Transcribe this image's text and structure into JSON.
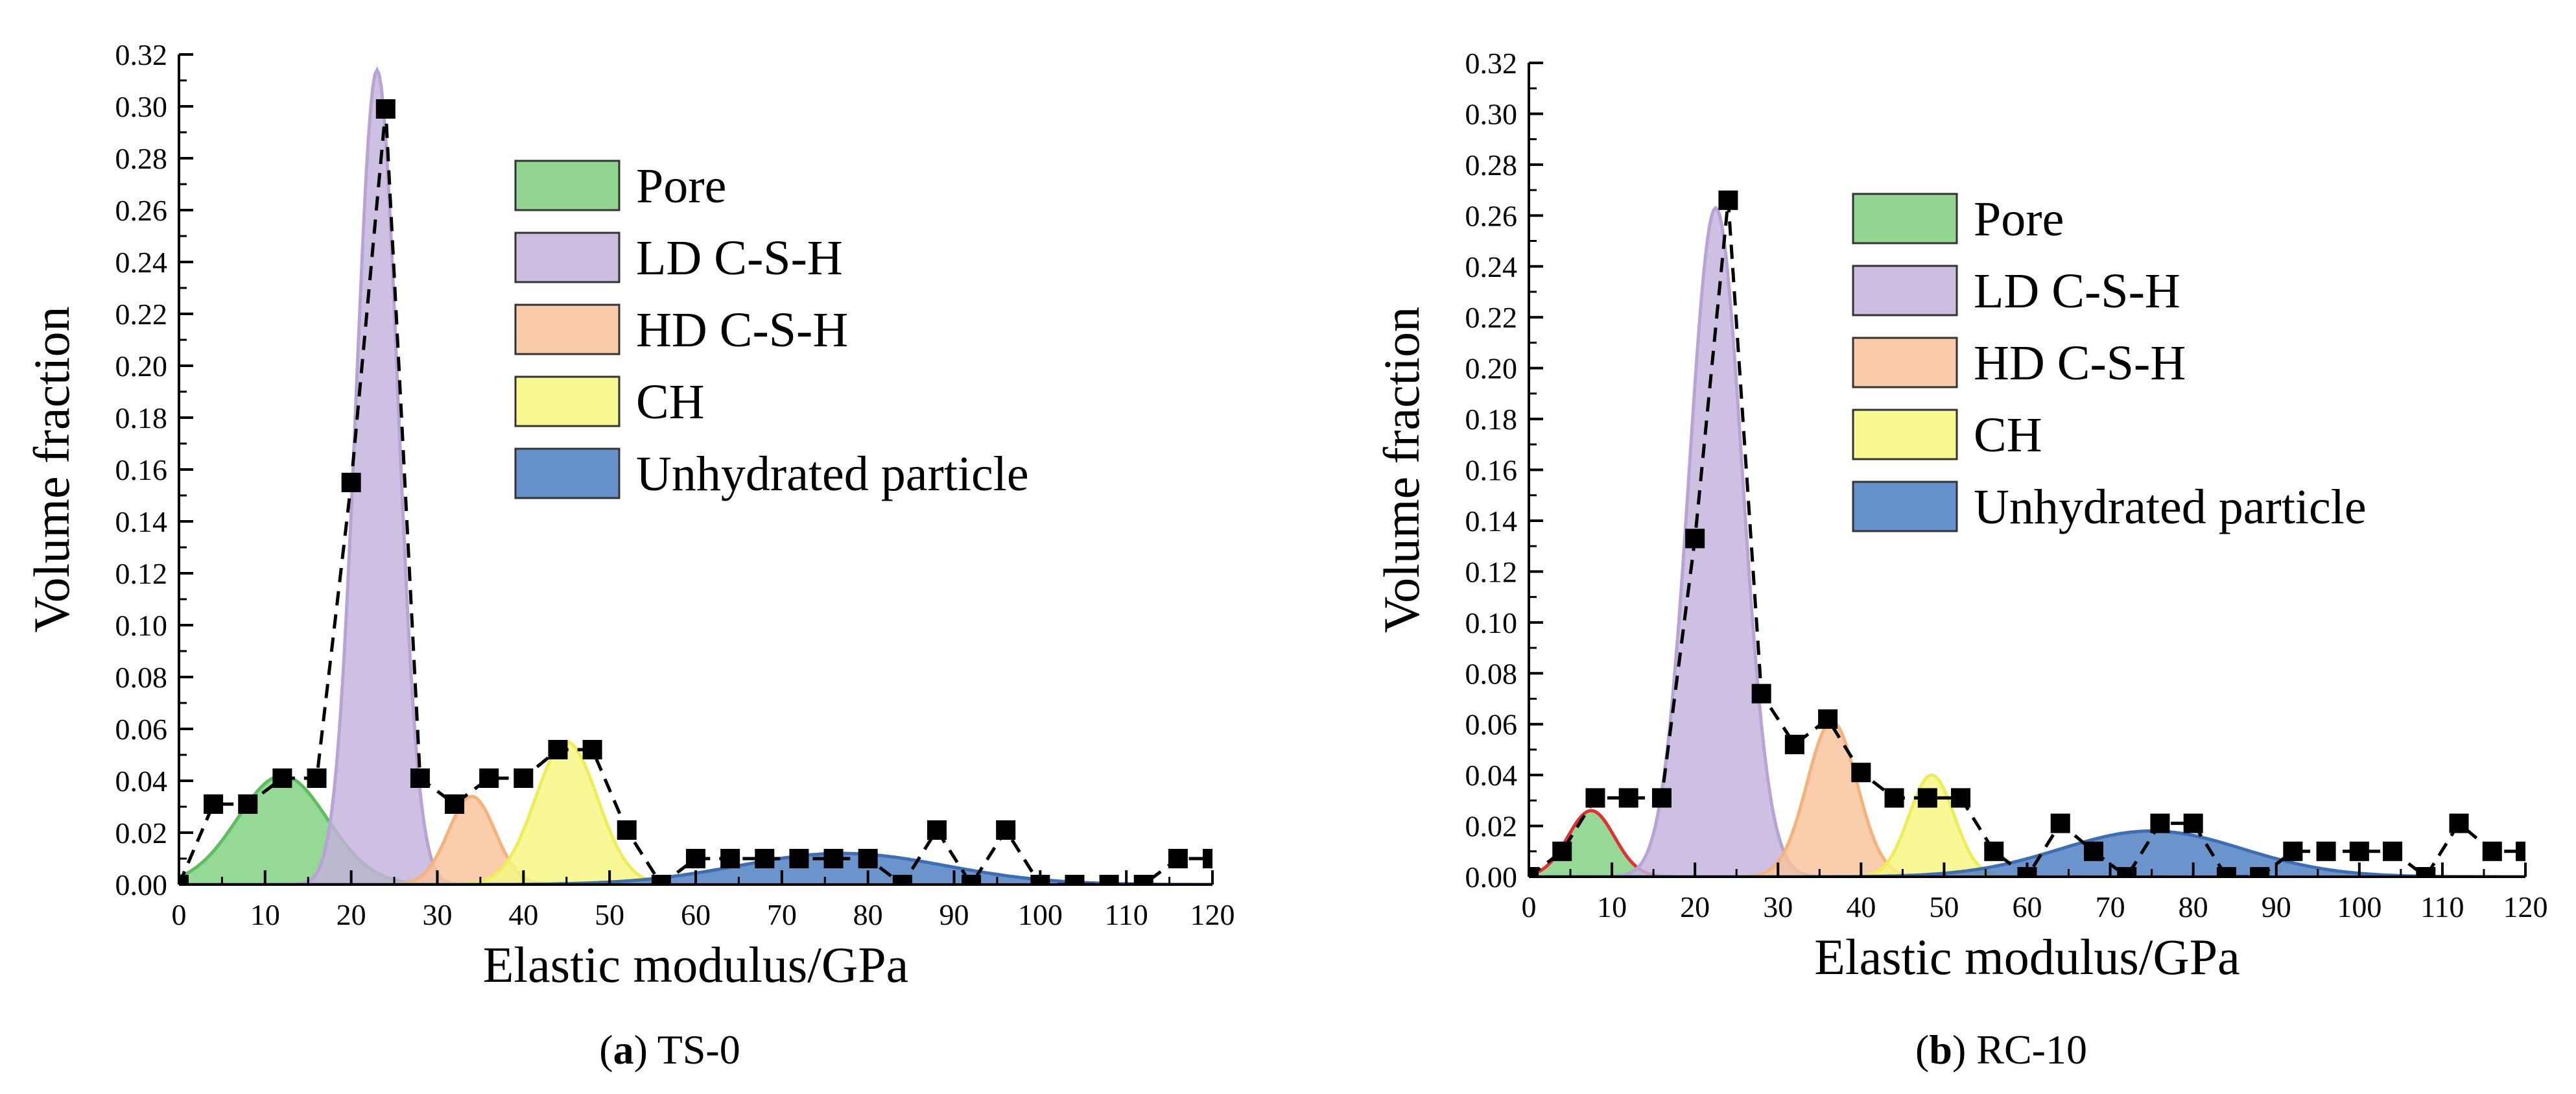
{
  "chart_data": [
    {
      "type": "area",
      "panel_label": "a",
      "caption": "TS-0",
      "xlabel": "Elastic modulus/GPa",
      "ylabel": "Volume fraction",
      "xlim": [
        0,
        120
      ],
      "ylim": [
        0,
        0.32
      ],
      "x_ticks": [
        0,
        10,
        20,
        30,
        40,
        50,
        60,
        70,
        80,
        90,
        100,
        110,
        120
      ],
      "y_ticks": [
        0.0,
        0.02,
        0.04,
        0.06,
        0.08,
        0.1,
        0.12,
        0.14,
        0.16,
        0.18,
        0.2,
        0.22,
        0.24,
        0.26,
        0.28,
        0.3,
        0.32
      ],
      "legend": [
        "Pore",
        "LD C-S-H",
        "HD C-S-H",
        "CH",
        "Unhydrated particle"
      ],
      "legend_position": "upper-center-right",
      "series": [
        {
          "name": "Pore",
          "color": "#5cbf5c",
          "fill": "#7fcf7f",
          "mean": 12,
          "std": 5.2,
          "peak": 0.042
        },
        {
          "name": "LD C-S-H",
          "color": "#b7a3d4",
          "fill": "#c3b2dc",
          "mean": 23,
          "std": 2.4,
          "peak": 0.314
        },
        {
          "name": "HD C-S-H",
          "color": "#f5b27a",
          "fill": "#f9c29a",
          "mean": 34,
          "std": 2.7,
          "peak": 0.034
        },
        {
          "name": "CH",
          "color": "#eded5a",
          "fill": "#f7f77f",
          "mean": 45,
          "std": 3.6,
          "peak": 0.055
        },
        {
          "name": "Unhydrated particle",
          "color": "#3d6eb4",
          "fill": "#4a7cc1",
          "mean": 77,
          "std": 12,
          "peak": 0.012
        }
      ],
      "experimental": {
        "name": "experimental frequency",
        "x": [
          0,
          4,
          8,
          12,
          16,
          20,
          24,
          28,
          32,
          36,
          40,
          44,
          48,
          52,
          56,
          60,
          64,
          68,
          72,
          76,
          80,
          84,
          88,
          92,
          96,
          100,
          104,
          108,
          112,
          116,
          120
        ],
        "y": [
          0.0,
          0.031,
          0.031,
          0.041,
          0.041,
          0.155,
          0.299,
          0.041,
          0.031,
          0.041,
          0.041,
          0.052,
          0.052,
          0.021,
          0.0,
          0.01,
          0.01,
          0.01,
          0.01,
          0.01,
          0.01,
          0.0,
          0.021,
          0.0,
          0.021,
          0.0,
          0.0,
          0.0,
          0.0,
          0.01,
          0.01
        ]
      }
    },
    {
      "type": "area",
      "panel_label": "b",
      "caption": "RC-10",
      "xlabel": "Elastic modulus/GPa",
      "ylabel": "Volume fraction",
      "xlim": [
        0,
        120
      ],
      "ylim": [
        0,
        0.32
      ],
      "x_ticks": [
        0,
        10,
        20,
        30,
        40,
        50,
        60,
        70,
        80,
        90,
        100,
        110,
        120
      ],
      "y_ticks": [
        0.0,
        0.02,
        0.04,
        0.06,
        0.08,
        0.1,
        0.12,
        0.14,
        0.16,
        0.18,
        0.2,
        0.22,
        0.24,
        0.26,
        0.28,
        0.3,
        0.32
      ],
      "legend": [
        "Pore",
        "LD C-S-H",
        "HD C-S-H",
        "CH",
        "Unhydrated particle"
      ],
      "legend_position": "upper-center-right",
      "series": [
        {
          "name": "Pore",
          "color": "#e03030",
          "fill": "#7fcf7f",
          "mean": 7.5,
          "std": 2.8,
          "peak": 0.026
        },
        {
          "name": "LD C-S-H",
          "color": "#b7a3d4",
          "fill": "#c3b2dc",
          "mean": 22.5,
          "std": 3.2,
          "peak": 0.263
        },
        {
          "name": "HD C-S-H",
          "color": "#f5b27a",
          "fill": "#f9c29a",
          "mean": 36.5,
          "std": 3.0,
          "peak": 0.061
        },
        {
          "name": "CH",
          "color": "#eded5a",
          "fill": "#f7f77f",
          "mean": 48.5,
          "std": 2.7,
          "peak": 0.04
        },
        {
          "name": "Unhydrated particle",
          "color": "#3d6eb4",
          "fill": "#4a7cc1",
          "mean": 75,
          "std": 11,
          "peak": 0.018
        }
      ],
      "experimental": {
        "name": "experimental frequency",
        "x": [
          0,
          4,
          8,
          12,
          16,
          20,
          24,
          28,
          32,
          36,
          40,
          44,
          48,
          52,
          56,
          60,
          64,
          68,
          72,
          76,
          80,
          84,
          88,
          92,
          96,
          100,
          104,
          108,
          112,
          116,
          120
        ],
        "y": [
          0.0,
          0.01,
          0.031,
          0.031,
          0.031,
          0.133,
          0.266,
          0.072,
          0.052,
          0.062,
          0.041,
          0.031,
          0.031,
          0.031,
          0.01,
          0.0,
          0.021,
          0.01,
          0.0,
          0.021,
          0.021,
          0.0,
          0.0,
          0.01,
          0.01,
          0.01,
          0.01,
          0.0,
          0.021,
          0.01,
          0.01
        ]
      }
    }
  ]
}
